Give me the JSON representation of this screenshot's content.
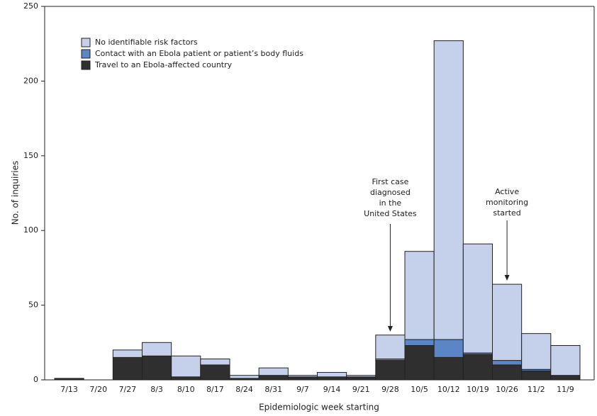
{
  "chart_data": {
    "type": "stacked-bar",
    "x_label": "Epidemiologic week starting",
    "y_label": "No. of inquiries",
    "categories": [
      "7/13",
      "7/20",
      "7/27",
      "8/3",
      "8/10",
      "8/17",
      "8/24",
      "8/31",
      "9/7",
      "9/14",
      "9/21",
      "9/28",
      "10/5",
      "10/12",
      "10/19",
      "10/26",
      "11/2",
      "11/9"
    ],
    "series": [
      {
        "name": "Travel to an Ebola-affected country",
        "color": "#2f2f2f",
        "values": [
          1,
          0,
          15,
          16,
          2,
          10,
          1,
          3,
          2,
          2,
          2,
          13,
          23,
          15,
          17,
          10,
          6,
          3
        ]
      },
      {
        "name": "Contact with an Ebola patient or patient’s body fluids",
        "color": "#5b85c4",
        "values": [
          0,
          0,
          0,
          0,
          0,
          0,
          0,
          0,
          0,
          0,
          0,
          1,
          4,
          12,
          1,
          3,
          1,
          0
        ]
      },
      {
        "name": "No identifiable risk factors",
        "color": "#c5d0ea",
        "values": [
          0,
          0,
          5,
          9,
          14,
          4,
          2,
          5,
          1,
          3,
          1,
          16,
          59,
          200,
          73,
          51,
          24,
          20
        ]
      }
    ],
    "ylim": [
      0,
      250
    ],
    "yticks": [
      0,
      50,
      100,
      150,
      200,
      250
    ],
    "annotations": [
      {
        "lines": [
          "First case",
          "diagnosed",
          "in the",
          "United States"
        ]
      },
      {
        "lines": [
          "Active",
          "monitoring",
          "started"
        ]
      }
    ]
  }
}
